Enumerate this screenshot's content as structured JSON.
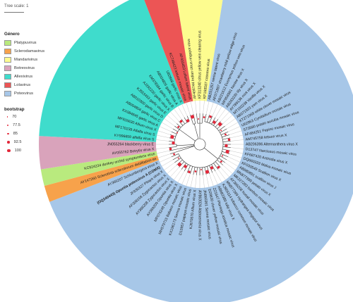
{
  "scale": {
    "label": "Tree scale: 1"
  },
  "legend": {
    "title": "Género",
    "items": [
      {
        "label": "Platypuvirus",
        "color": "#b9ea7e"
      },
      {
        "label": "Sclerodamavirus",
        "color": "#f7a24b"
      },
      {
        "label": "Mandarivirus",
        "color": "#fdfc8f"
      },
      {
        "label": "Botrexvirus",
        "color": "#d9a3bb"
      },
      {
        "label": "Allexivirus",
        "color": "#3fdccc"
      },
      {
        "label": "Lolavirus",
        "color": "#ec5555"
      },
      {
        "label": "Potexvirus",
        "color": "#a7c7e8"
      }
    ]
  },
  "bootstrap": {
    "title": "bootstrap",
    "items": [
      "70",
      "77.5",
      "85",
      "92.5",
      "100"
    ],
    "color": "#e2283a"
  },
  "tree": {
    "highlight_label": "(OQ240443) Opuntia potexvirus A (CDMX)",
    "leaves_cw_from_top": [
      "AF406744 Indian citrus ringspot virus",
      "KF313240 citrus yellow vein clearing virus",
      "KP168587 cassava virus",
      "AB251257 nerine latent virus",
      "AF071897 strawberry mild yellow edge virus",
      "AB221612 Euonymus yellow vein virus",
      "MF956981 Nerine virus X",
      "AB263230 Iily virus X",
      "AY789136 mint virus X",
      "MT150238 Vanilla virus X",
      "AB071923 yam virus X",
      "KT271969 white clover mosaic virus",
      "U62963 Cymbidium mosaic virus",
      "S73580 potato aucuba mosaic virus",
      "AF484251 Pepino mosaic virus",
      "AM745758 lettuce virus X",
      "AB206396 Alternanthera virus X",
      "D13747 Narcissus mosaic virus",
      "KF687420 Actinidia virus X",
      "DQ660333 Malva mosaic virus",
      "KF030549 Scallion virus X",
      "AB680891 scallion virus J",
      "MN877399 potato virus X",
      "MK227283 bamboo mosaic virus",
      "AY366208 foxtail mosaic virus",
      "MN877399 Hydrangea ringspot virus",
      "KJ955114 tobacco common mosaic virus",
      "AB682389 tulip virus X",
      "Z21647 Plantago asiatica mosaic virus",
      "D29630 clover yellow mosaic virus",
      "JN860361 Senna mosaic virus",
      "AY863024 Alstroemeria virus X",
      "KJ670570 Allium virus X",
      "D13957 papaya mosaic virus",
      "KX196173 Senna mosaic virus",
      "MH579715 Babaco mosaic virus",
      "MF076248 Opuntia virus X",
      "AY369209 Opuntia virus X",
      "AY366208 Zygocactus virus X",
      "AF308158 Zygocactus virus X",
      "JF930327 Pitaya virus X",
      "(OQ240443) Opuntia potexvirus A (CDMX)",
      "AY366207 Schlumbergera virus X",
      "AY147260 Sclerotinia sclerotiorum debilitation-as",
      "KC924234 donkey orchid symptomless virus",
      "AY055762 Botrytis virus X",
      "JN055264 blackberry virus E",
      "KY996659 alfalfa virus S",
      "MF170239 Alfalfa virus S",
      "MF926630 Allium virus X",
      "KX084845 garlic virus A",
      "AB004804 garlic virus C",
      "AB010300 garlic virus D",
      "KJ553453 garlic virus E",
      "AJ292230 garlic virus X",
      "KM378394 garlic virus B",
      "AB004805 garlic virus A",
      "U82868 garlic virus X",
      "KC748423 lettuce mosaic virus",
      "AF400453 Lolium latent virus"
    ]
  }
}
